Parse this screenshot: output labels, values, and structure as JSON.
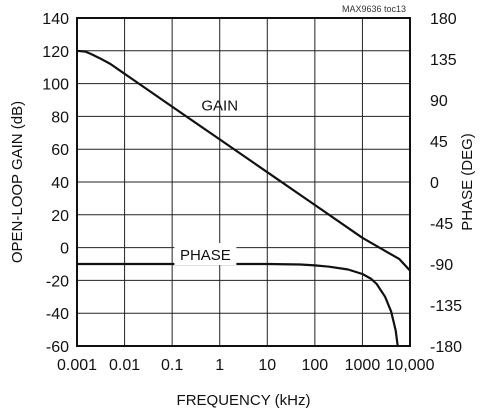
{
  "chart_data": {
    "type": "line",
    "source_label": "MAX9636 toc13",
    "xlabel": "FREQUENCY (kHz)",
    "x_scale": "log",
    "xlim": [
      0.001,
      10000
    ],
    "x_ticks": [
      {
        "value": 0.001,
        "label": "0.001"
      },
      {
        "value": 0.01,
        "label": "0.01"
      },
      {
        "value": 0.1,
        "label": "0.1"
      },
      {
        "value": 1,
        "label": "1"
      },
      {
        "value": 10,
        "label": "10"
      },
      {
        "value": 100,
        "label": "100"
      },
      {
        "value": 1000,
        "label": "1000"
      },
      {
        "value": 10000,
        "label": "10,000"
      }
    ],
    "y_left": {
      "label": "OPEN-LOOP GAIN (dB)",
      "range": [
        -60,
        140
      ],
      "ticks": [
        {
          "value": 140,
          "label": "140"
        },
        {
          "value": 120,
          "label": "120"
        },
        {
          "value": 100,
          "label": "100"
        },
        {
          "value": 80,
          "label": "80"
        },
        {
          "value": 60,
          "label": "60"
        },
        {
          "value": 40,
          "label": "40"
        },
        {
          "value": 20,
          "label": "20"
        },
        {
          "value": 0,
          "label": "0"
        },
        {
          "value": -20,
          "label": "-20"
        },
        {
          "value": -40,
          "label": "-40"
        },
        {
          "value": -60,
          "label": "-60"
        }
      ]
    },
    "y_right": {
      "label": "PHASE (DEG)",
      "range": [
        -180,
        180
      ],
      "ticks": [
        {
          "value": 180,
          "label": "180"
        },
        {
          "value": 135,
          "label": "135"
        },
        {
          "value": 90,
          "label": "90"
        },
        {
          "value": 45,
          "label": "45"
        },
        {
          "value": 0,
          "label": "0"
        },
        {
          "value": -45,
          "label": "-45"
        },
        {
          "value": -90,
          "label": "-90"
        },
        {
          "value": -135,
          "label": "-135"
        },
        {
          "value": -180,
          "label": "-180"
        }
      ]
    },
    "grid": true,
    "series": [
      {
        "name": "GAIN",
        "axis": "left",
        "x": [
          0.001,
          0.0015,
          0.002,
          0.003,
          0.005,
          0.01,
          0.1,
          1,
          10,
          100,
          1000,
          3000,
          6000,
          10000
        ],
        "y": [
          120,
          119.5,
          118,
          115.5,
          112,
          106,
          86,
          66,
          46,
          26,
          6,
          -2,
          -7,
          -14
        ]
      },
      {
        "name": "PHASE",
        "axis": "right",
        "x": [
          0.001,
          0.01,
          0.1,
          1,
          10,
          50,
          100,
          200,
          500,
          1000,
          1500,
          2000,
          3000,
          4000,
          5000,
          5500
        ],
        "y": [
          -90,
          -90,
          -90,
          -90,
          -90,
          -90.5,
          -91.5,
          -93,
          -96,
          -101,
          -106,
          -112,
          -126,
          -142,
          -163,
          -179
        ]
      }
    ]
  }
}
